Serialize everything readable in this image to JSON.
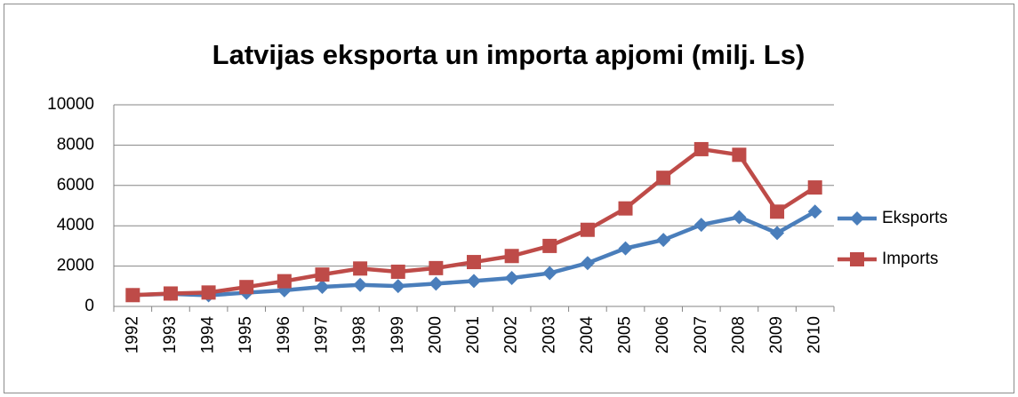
{
  "chart_data": {
    "type": "line",
    "title": "Latvijas eksporta un importa apjomi (milj. Ls)",
    "categories": [
      "1992",
      "1993",
      "1994",
      "1995",
      "1996",
      "1997",
      "1998",
      "1999",
      "2000",
      "2001",
      "2002",
      "2003",
      "2004",
      "2005",
      "2006",
      "2007",
      "2008",
      "2009",
      "2010"
    ],
    "series": [
      {
        "name": "Eksports",
        "color": "#4a7ebb",
        "marker": "diamond",
        "values": [
          560,
          620,
          550,
          680,
          800,
          970,
          1070,
          1010,
          1130,
          1260,
          1410,
          1650,
          2150,
          2880,
          3300,
          4050,
          4430,
          3640,
          4700
        ]
      },
      {
        "name": "Imports",
        "color": "#be4b48",
        "marker": "square",
        "values": [
          560,
          640,
          690,
          960,
          1250,
          1580,
          1880,
          1720,
          1900,
          2200,
          2500,
          3000,
          3800,
          4860,
          6380,
          7800,
          7520,
          4700,
          5900
        ]
      }
    ],
    "ylim": [
      0,
      10000
    ],
    "yticks": [
      0,
      2000,
      4000,
      6000,
      8000,
      10000
    ],
    "grid": true,
    "legend": "right"
  }
}
